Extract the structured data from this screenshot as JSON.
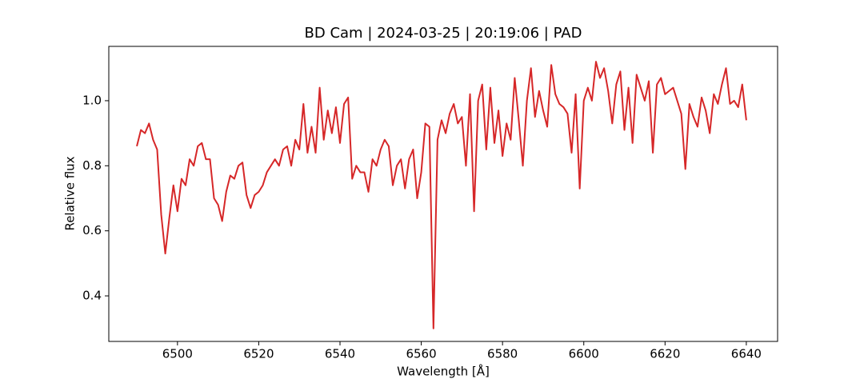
{
  "chart_data": {
    "type": "line",
    "title": "BD Cam | 2024-03-25 | 20:19:06 | PAD",
    "x_label": "Wavelength [Å]",
    "y_label": "Relative flux",
    "xlim": [
      6483.1,
      6647.7
    ],
    "ylim": [
      0.26,
      1.167
    ],
    "xticks": [
      6500,
      6520,
      6540,
      6560,
      6580,
      6600,
      6620,
      6640
    ],
    "yticks": [
      0.4,
      0.6,
      0.8,
      {
        "value": 1,
        "label": "1.0"
      }
    ],
    "x": [
      6490,
      6491,
      6492,
      6493,
      6494,
      6495,
      6496,
      6497,
      6498,
      6499,
      6500,
      6501,
      6502,
      6503,
      6504,
      6505,
      6506,
      6507,
      6508,
      6509,
      6510,
      6511,
      6512,
      6513,
      6514,
      6515,
      6516,
      6517,
      6518,
      6519,
      6520,
      6521,
      6522,
      6523,
      6524,
      6525,
      6526,
      6527,
      6528,
      6529,
      6530,
      6531,
      6532,
      6533,
      6534,
      6535,
      6536,
      6537,
      6538,
      6539,
      6540,
      6541,
      6542,
      6543,
      6544,
      6545,
      6546,
      6547,
      6548,
      6549,
      6550,
      6551,
      6552,
      6553,
      6554,
      6555,
      6556,
      6557,
      6558,
      6559,
      6560,
      6561,
      6562,
      6563,
      6564,
      6565,
      6566,
      6567,
      6568,
      6569,
      6570,
      6571,
      6572,
      6573,
      6574,
      6575,
      6576,
      6577,
      6578,
      6579,
      6580,
      6581,
      6582,
      6583,
      6584,
      6585,
      6586,
      6587,
      6588,
      6589,
      6590,
      6591,
      6592,
      6593,
      6594,
      6595,
      6596,
      6597,
      6598,
      6599,
      6600,
      6601,
      6602,
      6603,
      6604,
      6605,
      6606,
      6607,
      6608,
      6609,
      6610,
      6611,
      6612,
      6613,
      6614,
      6615,
      6616,
      6617,
      6618,
      6619,
      6620,
      6621,
      6622,
      6623,
      6624,
      6625,
      6626,
      6627,
      6628,
      6629,
      6630,
      6631,
      6632,
      6633,
      6634,
      6635,
      6636,
      6637,
      6638,
      6639,
      6640
    ],
    "series": [
      {
        "color": "#d62728",
        "values": [
          0.86,
          0.91,
          0.9,
          0.93,
          0.88,
          0.85,
          0.65,
          0.53,
          0.64,
          0.74,
          0.66,
          0.76,
          0.74,
          0.82,
          0.8,
          0.86,
          0.87,
          0.82,
          0.82,
          0.7,
          0.68,
          0.63,
          0.72,
          0.77,
          0.76,
          0.8,
          0.81,
          0.71,
          0.67,
          0.71,
          0.72,
          0.74,
          0.78,
          0.8,
          0.82,
          0.8,
          0.85,
          0.86,
          0.8,
          0.88,
          0.85,
          0.99,
          0.84,
          0.92,
          0.84,
          1.04,
          0.88,
          0.97,
          0.9,
          0.98,
          0.87,
          0.99,
          1.01,
          0.76,
          0.8,
          0.78,
          0.78,
          0.72,
          0.82,
          0.8,
          0.85,
          0.88,
          0.86,
          0.74,
          0.8,
          0.82,
          0.73,
          0.82,
          0.85,
          0.7,
          0.78,
          0.93,
          0.92,
          0.3,
          0.88,
          0.94,
          0.9,
          0.96,
          0.99,
          0.93,
          0.95,
          0.8,
          1.02,
          0.66,
          1.0,
          1.05,
          0.85,
          1.04,
          0.87,
          0.97,
          0.83,
          0.93,
          0.88,
          1.07,
          0.94,
          0.8,
          1.0,
          1.1,
          0.95,
          1.03,
          0.97,
          0.92,
          1.11,
          1.02,
          0.99,
          0.98,
          0.96,
          0.84,
          1.02,
          0.73,
          1.0,
          1.04,
          1.0,
          1.12,
          1.07,
          1.1,
          1.03,
          0.93,
          1.05,
          1.09,
          0.91,
          1.04,
          0.87,
          1.08,
          1.04,
          1.0,
          1.06,
          0.84,
          1.05,
          1.07,
          1.02,
          1.03,
          1.04,
          1.0,
          0.96,
          0.79,
          0.99,
          0.95,
          0.92,
          1.01,
          0.97,
          0.9,
          1.02,
          0.99,
          1.05,
          1.1,
          0.99,
          1.0,
          0.98,
          1.05,
          0.94
        ]
      }
    ]
  }
}
